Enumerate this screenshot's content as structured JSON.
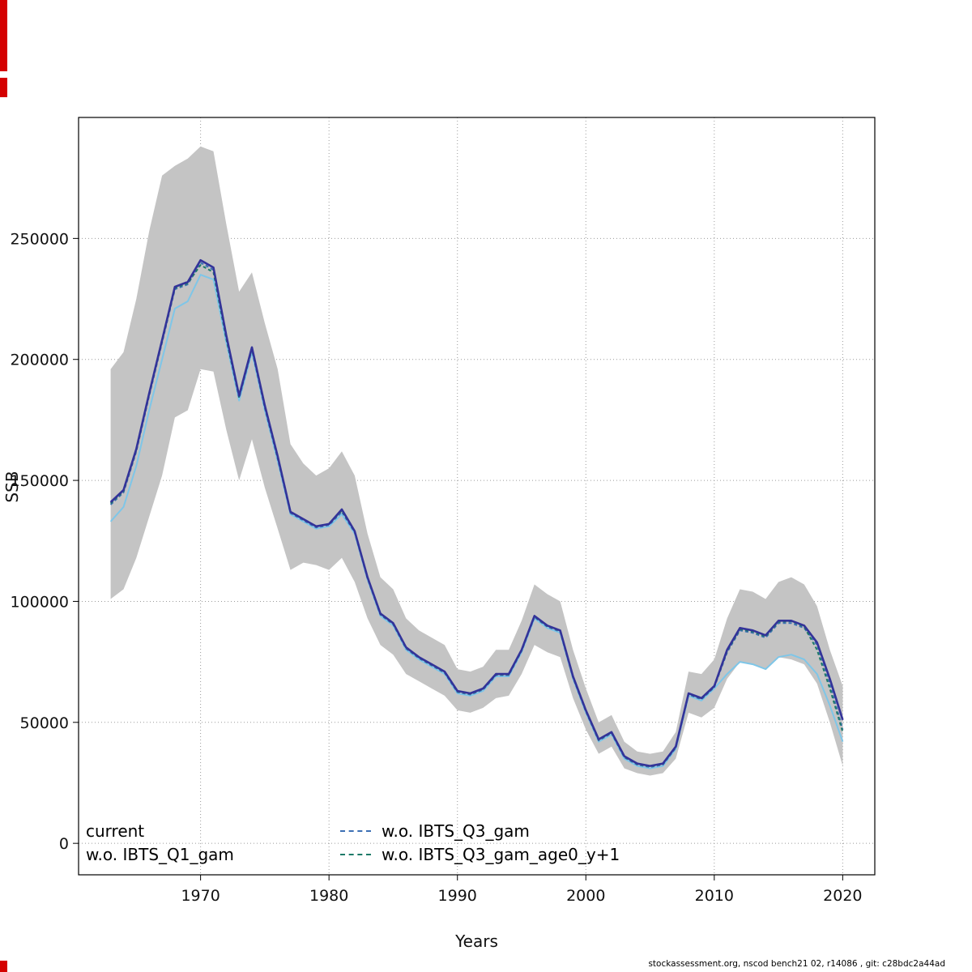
{
  "axes": {
    "x_label": "Years",
    "y_label": "SSB"
  },
  "footer": {
    "text": "stockassessment.org, nscod bench21 02, r14086 , git: c28bdc2a44ad"
  },
  "artifacts": {
    "color": "#d40000"
  },
  "legend": {
    "entries": [
      {
        "label": "current",
        "color": "#333399",
        "swatch": false
      },
      {
        "label": "w.o. IBTS_Q1_gam",
        "color": "#7ec6e8",
        "swatch": false
      },
      {
        "label": "w.o. IBTS_Q3_gam",
        "color": "#3c6fb4",
        "swatch": true
      },
      {
        "label": "w.o. IBTS_Q3_gam_age0_y+1",
        "color": "#1d7a68",
        "swatch": true
      }
    ]
  },
  "chart_data": {
    "type": "line",
    "title": "",
    "xlabel": "Years",
    "ylabel": "SSB",
    "xlim": [
      1960.5,
      2022.5
    ],
    "ylim": [
      -13000,
      300000
    ],
    "x_ticks": [
      1970,
      1980,
      1990,
      2000,
      2010,
      2020
    ],
    "y_ticks": [
      0,
      50000,
      100000,
      150000,
      200000,
      250000
    ],
    "grid": "dotted",
    "legend_position": "bottom-left-inside",
    "x": [
      1963,
      1964,
      1965,
      1966,
      1967,
      1968,
      1969,
      1970,
      1971,
      1972,
      1973,
      1974,
      1975,
      1976,
      1977,
      1978,
      1979,
      1980,
      1981,
      1982,
      1983,
      1984,
      1985,
      1986,
      1987,
      1988,
      1989,
      1990,
      1991,
      1992,
      1993,
      1994,
      1995,
      1996,
      1997,
      1998,
      1999,
      2000,
      2001,
      2002,
      2003,
      2004,
      2005,
      2006,
      2007,
      2008,
      2009,
      2010,
      2011,
      2012,
      2013,
      2014,
      2015,
      2016,
      2017,
      2018,
      2019,
      2020
    ],
    "band": {
      "name": "confidence-band",
      "color": "#c4c4c4",
      "lower": [
        101000,
        105000,
        118000,
        135000,
        152000,
        176000,
        179000,
        196000,
        195000,
        171000,
        150000,
        167000,
        147000,
        130000,
        113000,
        116000,
        115000,
        113000,
        118000,
        108000,
        93000,
        82000,
        78000,
        70000,
        67000,
        64000,
        61000,
        55000,
        54000,
        56000,
        60000,
        61000,
        70000,
        82000,
        79000,
        77000,
        60000,
        47000,
        37000,
        40000,
        31000,
        29000,
        28000,
        29000,
        35000,
        54000,
        52000,
        56000,
        68000,
        75000,
        74000,
        72000,
        77000,
        76000,
        74000,
        66000,
        50000,
        32000
      ],
      "upper": [
        196000,
        203000,
        225000,
        253000,
        276000,
        280000,
        283000,
        288000,
        286000,
        256000,
        228000,
        236000,
        215000,
        196000,
        165000,
        157000,
        152000,
        155000,
        162000,
        152000,
        128000,
        110000,
        105000,
        93000,
        88000,
        85000,
        82000,
        72000,
        71000,
        73000,
        80000,
        80000,
        92000,
        107000,
        103000,
        100000,
        80000,
        64000,
        50000,
        53000,
        42000,
        38000,
        37000,
        38000,
        46000,
        71000,
        70000,
        76000,
        93000,
        105000,
        104000,
        101000,
        108000,
        110000,
        107000,
        98000,
        80000,
        65000
      ]
    },
    "series": [
      {
        "name": "current",
        "color": "#333399",
        "dash": null,
        "width": 2.6,
        "values": [
          141000,
          146000,
          163000,
          186000,
          208000,
          230000,
          232000,
          241000,
          238000,
          210000,
          185000,
          205000,
          181000,
          160000,
          137000,
          134000,
          131000,
          132000,
          138000,
          129000,
          110000,
          95000,
          91000,
          81000,
          77000,
          74000,
          71000,
          63000,
          62000,
          64000,
          70000,
          70000,
          80000,
          94000,
          90000,
          88000,
          69000,
          55000,
          43000,
          46000,
          36000,
          33000,
          32000,
          33000,
          40000,
          62000,
          60000,
          65000,
          80000,
          89000,
          88000,
          86000,
          92000,
          92000,
          90000,
          83000,
          68000,
          51000
        ]
      },
      {
        "name": "w.o. IBTS_Q1_gam",
        "color": "#7ec6e8",
        "dash": null,
        "width": 2,
        "values": [
          133000,
          139000,
          156000,
          179000,
          200000,
          221000,
          224000,
          235000,
          233000,
          207000,
          183000,
          203000,
          179000,
          158000,
          136000,
          133000,
          130000,
          131000,
          136000,
          128000,
          109000,
          94000,
          90000,
          80000,
          76000,
          73000,
          70000,
          62000,
          61000,
          63000,
          69000,
          69000,
          79000,
          93000,
          89000,
          87000,
          68000,
          54000,
          42000,
          45000,
          35000,
          32000,
          31000,
          32000,
          39000,
          61000,
          59000,
          64000,
          70000,
          75000,
          74000,
          72000,
          77000,
          78000,
          76000,
          70000,
          57000,
          42000
        ]
      },
      {
        "name": "w.o. IBTS_Q3_gam",
        "color": "#3c6fb4",
        "dash": "4 3",
        "width": 2,
        "values": [
          140000,
          145000,
          162000,
          185000,
          207000,
          229000,
          231000,
          240000,
          237000,
          209000,
          184000,
          204000,
          180000,
          159000,
          136500,
          133500,
          130500,
          131500,
          137000,
          128500,
          109500,
          94500,
          90500,
          80500,
          76500,
          73500,
          70500,
          62500,
          61500,
          63500,
          69500,
          69500,
          79500,
          93500,
          89500,
          87500,
          68500,
          54500,
          42500,
          45500,
          35500,
          32500,
          31500,
          32500,
          39500,
          61500,
          59500,
          64500,
          79000,
          88000,
          87000,
          85000,
          91000,
          91000,
          89000,
          82000,
          66000,
          47000
        ]
      },
      {
        "name": "w.o. IBTS_Q3_gam_age0_y+1",
        "color": "#1d7a68",
        "dash": "4 3",
        "width": 2,
        "values": [
          140500,
          145500,
          162500,
          185500,
          207500,
          229500,
          231500,
          239000,
          236000,
          208500,
          184500,
          204500,
          180500,
          159500,
          137000,
          134000,
          131000,
          132000,
          137500,
          129000,
          109800,
          94800,
          90800,
          80800,
          76800,
          73800,
          70800,
          62800,
          61800,
          63800,
          69800,
          69800,
          79800,
          93800,
          89800,
          87800,
          68800,
          54800,
          42800,
          45800,
          35800,
          32800,
          31800,
          32800,
          39800,
          61800,
          59800,
          64800,
          79500,
          88500,
          87500,
          85500,
          91500,
          91800,
          89500,
          80000,
          64000,
          46000
        ]
      }
    ]
  }
}
